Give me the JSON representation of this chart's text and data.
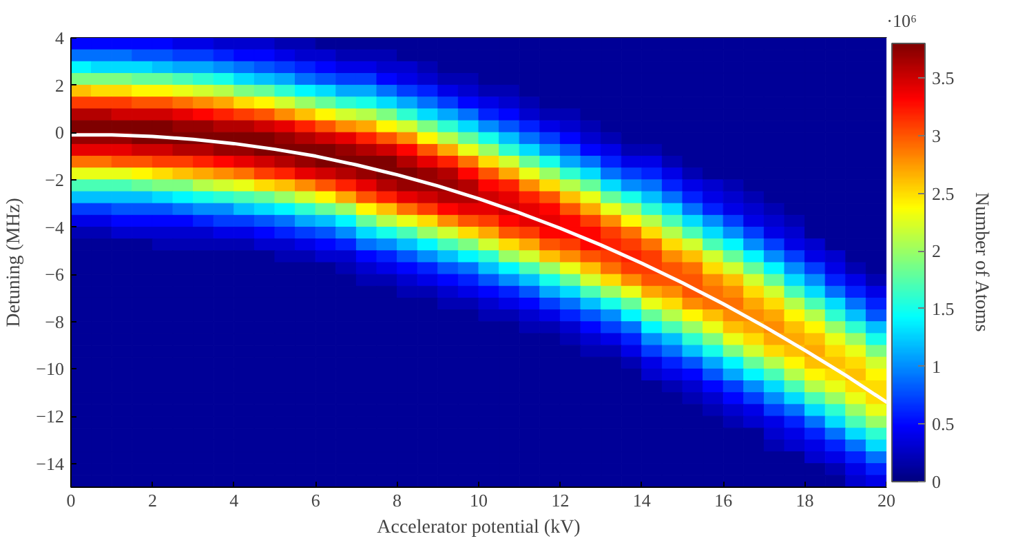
{
  "chart_data": {
    "type": "heatmap",
    "xlabel": "Accelerator potential (kV)",
    "ylabel": "Detuning (MHz)",
    "clabel": "Number of Atoms",
    "annotations": [
      "·10⁶"
    ],
    "xlim": [
      0,
      20
    ],
    "ylim": [
      -15,
      4
    ],
    "xticks": [
      0,
      2,
      4,
      6,
      8,
      10,
      12,
      14,
      16,
      18,
      20
    ],
    "yticks": [
      -14,
      -12,
      -10,
      -8,
      -6,
      -4,
      -2,
      0,
      2,
      4
    ],
    "clim": [
      0,
      3.8
    ],
    "cticks": [
      0,
      0.5,
      1,
      1.5,
      2,
      2.5,
      3,
      3.5
    ],
    "cells": [
      [
        0.5,
        0.5,
        0.5,
        0.5,
        0.5,
        0.4,
        0.4,
        0.3,
        0.3,
        0.3,
        0.2,
        0.2,
        0.1,
        0.1,
        0.1,
        0.1,
        0.1,
        0.1,
        0.1,
        0.1,
        0.1,
        0.1,
        0.1,
        0.1,
        0.1,
        0.1,
        0.1,
        0.1,
        0.1,
        0.1,
        0.1,
        0.1,
        0.1,
        0.1,
        0.1,
        0.1,
        0.1,
        0.1,
        0.1,
        0.1
      ],
      [
        0.9,
        0.9,
        0.9,
        0.8,
        0.8,
        0.7,
        0.7,
        0.6,
        0.5,
        0.5,
        0.4,
        0.3,
        0.3,
        0.2,
        0.2,
        0.2,
        0.1,
        0.1,
        0.1,
        0.1,
        0.1,
        0.1,
        0.1,
        0.1,
        0.1,
        0.1,
        0.1,
        0.1,
        0.1,
        0.1,
        0.1,
        0.1,
        0.1,
        0.1,
        0.1,
        0.1,
        0.1,
        0.1,
        0.1,
        0.1
      ],
      [
        1.4,
        1.3,
        1.3,
        1.3,
        1.2,
        1.1,
        1.1,
        1.0,
        0.9,
        0.8,
        0.7,
        0.6,
        0.5,
        0.4,
        0.4,
        0.3,
        0.3,
        0.2,
        0.1,
        0.1,
        0.1,
        0.1,
        0.1,
        0.1,
        0.1,
        0.1,
        0.1,
        0.1,
        0.1,
        0.1,
        0.1,
        0.1,
        0.1,
        0.1,
        0.1,
        0.1,
        0.1,
        0.1,
        0.1,
        0.1
      ],
      [
        1.9,
        1.9,
        1.9,
        1.8,
        1.8,
        1.7,
        1.6,
        1.5,
        1.3,
        1.2,
        1.1,
        0.9,
        0.8,
        0.7,
        0.7,
        0.5,
        0.4,
        0.3,
        0.2,
        0.2,
        0.1,
        0.1,
        0.1,
        0.1,
        0.1,
        0.1,
        0.1,
        0.1,
        0.1,
        0.1,
        0.1,
        0.1,
        0.1,
        0.1,
        0.1,
        0.1,
        0.1,
        0.1,
        0.1,
        0.1
      ],
      [
        2.6,
        2.5,
        2.5,
        2.4,
        2.4,
        2.3,
        2.2,
        2.1,
        1.9,
        1.8,
        1.6,
        1.4,
        1.3,
        1.1,
        1.1,
        0.9,
        0.7,
        0.6,
        0.4,
        0.3,
        0.2,
        0.2,
        0.1,
        0.1,
        0.1,
        0.1,
        0.1,
        0.1,
        0.1,
        0.1,
        0.1,
        0.1,
        0.1,
        0.1,
        0.1,
        0.1,
        0.1,
        0.1,
        0.1,
        0.1
      ],
      [
        3.1,
        3.1,
        3.1,
        3.0,
        3.0,
        2.9,
        2.8,
        2.7,
        2.5,
        2.4,
        2.2,
        2.0,
        1.8,
        1.6,
        1.5,
        1.3,
        1.1,
        0.9,
        0.7,
        0.5,
        0.4,
        0.3,
        0.2,
        0.1,
        0.1,
        0.1,
        0.1,
        0.1,
        0.1,
        0.1,
        0.1,
        0.1,
        0.1,
        0.1,
        0.1,
        0.1,
        0.1,
        0.1,
        0.1,
        0.1
      ],
      [
        3.6,
        3.6,
        3.5,
        3.5,
        3.5,
        3.4,
        3.3,
        3.2,
        3.1,
        3.0,
        2.8,
        2.6,
        2.4,
        2.2,
        2.1,
        1.9,
        1.6,
        1.3,
        1.1,
        0.9,
        0.6,
        0.5,
        0.3,
        0.2,
        0.2,
        0.1,
        0.1,
        0.1,
        0.1,
        0.1,
        0.1,
        0.1,
        0.1,
        0.1,
        0.1,
        0.1,
        0.1,
        0.1,
        0.1,
        0.1
      ],
      [
        3.8,
        3.8,
        3.8,
        3.8,
        3.8,
        3.7,
        3.7,
        3.6,
        3.6,
        3.5,
        3.4,
        3.2,
        3.0,
        2.8,
        2.7,
        2.4,
        2.2,
        1.9,
        1.6,
        1.3,
        1.0,
        0.8,
        0.6,
        0.4,
        0.3,
        0.2,
        0.1,
        0.1,
        0.1,
        0.1,
        0.1,
        0.1,
        0.1,
        0.1,
        0.1,
        0.1,
        0.1,
        0.1,
        0.1,
        0.1
      ],
      [
        3.7,
        3.7,
        3.7,
        3.8,
        3.8,
        3.8,
        3.8,
        3.8,
        3.8,
        3.8,
        3.7,
        3.6,
        3.5,
        3.4,
        3.2,
        3.0,
        2.8,
        2.4,
        2.1,
        1.8,
        1.5,
        1.2,
        0.9,
        0.7,
        0.5,
        0.3,
        0.2,
        0.1,
        0.1,
        0.1,
        0.1,
        0.1,
        0.1,
        0.1,
        0.1,
        0.1,
        0.1,
        0.1,
        0.1,
        0.1
      ],
      [
        3.4,
        3.4,
        3.4,
        3.5,
        3.5,
        3.6,
        3.6,
        3.7,
        3.7,
        3.8,
        3.8,
        3.8,
        3.8,
        3.7,
        3.6,
        3.5,
        3.3,
        3.0,
        2.7,
        2.3,
        2.0,
        1.6,
        1.3,
        1.0,
        0.8,
        0.5,
        0.4,
        0.2,
        0.2,
        0.1,
        0.1,
        0.1,
        0.1,
        0.1,
        0.1,
        0.1,
        0.1,
        0.1,
        0.1,
        0.1
      ],
      [
        2.9,
        2.9,
        3.0,
        3.0,
        3.1,
        3.1,
        3.2,
        3.3,
        3.4,
        3.5,
        3.6,
        3.7,
        3.8,
        3.8,
        3.8,
        3.8,
        3.6,
        3.4,
        3.2,
        2.9,
        2.5,
        2.2,
        1.8,
        1.5,
        1.1,
        0.9,
        0.6,
        0.4,
        0.4,
        0.2,
        0.1,
        0.1,
        0.1,
        0.1,
        0.1,
        0.1,
        0.1,
        0.1,
        0.1,
        0.1
      ],
      [
        2.3,
        2.3,
        2.3,
        2.4,
        2.5,
        2.6,
        2.7,
        2.8,
        2.9,
        3.1,
        3.2,
        3.4,
        3.5,
        3.6,
        3.7,
        3.8,
        3.8,
        3.7,
        3.6,
        3.3,
        3.0,
        2.7,
        2.3,
        2.0,
        1.6,
        1.3,
        0.9,
        0.7,
        0.6,
        0.4,
        0.2,
        0.1,
        0.1,
        0.1,
        0.1,
        0.1,
        0.1,
        0.1,
        0.1,
        0.1
      ],
      [
        1.7,
        1.7,
        1.7,
        1.8,
        1.9,
        1.9,
        2.1,
        2.2,
        2.3,
        2.5,
        2.6,
        2.8,
        3.0,
        3.2,
        3.4,
        3.6,
        3.7,
        3.7,
        3.7,
        3.6,
        3.3,
        3.2,
        2.8,
        2.5,
        2.1,
        1.8,
        1.3,
        1.0,
        0.9,
        0.6,
        0.4,
        0.3,
        0.2,
        0.1,
        0.1,
        0.1,
        0.1,
        0.1,
        0.1,
        0.1
      ],
      [
        1.2,
        1.2,
        1.2,
        1.2,
        1.3,
        1.4,
        1.5,
        1.6,
        1.7,
        1.8,
        2.0,
        2.2,
        2.4,
        2.7,
        3.0,
        3.2,
        3.4,
        3.5,
        3.6,
        3.6,
        3.5,
        3.4,
        3.2,
        3.0,
        2.6,
        2.3,
        1.8,
        1.5,
        1.2,
        0.9,
        0.6,
        0.4,
        0.3,
        0.2,
        0.1,
        0.1,
        0.1,
        0.1,
        0.1,
        0.1
      ],
      [
        0.7,
        0.7,
        0.8,
        0.8,
        0.8,
        0.9,
        1.0,
        1.0,
        1.2,
        1.3,
        1.4,
        1.6,
        1.8,
        2.0,
        2.4,
        2.6,
        2.9,
        3.1,
        3.3,
        3.4,
        3.4,
        3.5,
        3.4,
        3.3,
        3.0,
        2.7,
        2.3,
        2.0,
        1.6,
        1.3,
        0.9,
        0.6,
        0.4,
        0.3,
        0.2,
        0.1,
        0.1,
        0.1,
        0.1,
        0.1
      ],
      [
        0.4,
        0.4,
        0.5,
        0.5,
        0.5,
        0.5,
        0.6,
        0.7,
        0.7,
        0.8,
        0.9,
        1.1,
        1.2,
        1.4,
        1.8,
        2.1,
        2.3,
        2.5,
        2.8,
        3.0,
        3.1,
        3.3,
        3.4,
        3.4,
        3.3,
        3.1,
        2.8,
        2.4,
        2.1,
        1.7,
        1.3,
        1.0,
        0.7,
        0.4,
        0.3,
        0.2,
        0.1,
        0.1,
        0.1,
        0.1
      ],
      [
        0.2,
        0.2,
        0.3,
        0.3,
        0.3,
        0.3,
        0.3,
        0.4,
        0.4,
        0.5,
        0.6,
        0.7,
        0.8,
        1.0,
        1.3,
        1.5,
        1.7,
        2.0,
        2.2,
        2.5,
        2.7,
        3.0,
        3.1,
        3.3,
        3.3,
        3.3,
        3.1,
        2.9,
        2.5,
        2.1,
        1.7,
        1.3,
        1.0,
        0.7,
        0.4,
        0.3,
        0.1,
        0.1,
        0.1,
        0.1
      ],
      [
        0.1,
        0.1,
        0.1,
        0.1,
        0.2,
        0.2,
        0.2,
        0.2,
        0.2,
        0.3,
        0.3,
        0.4,
        0.5,
        0.6,
        0.9,
        1.0,
        1.2,
        1.4,
        1.7,
        1.9,
        2.2,
        2.5,
        2.7,
        3.0,
        3.1,
        3.3,
        3.2,
        3.1,
        2.9,
        2.5,
        2.2,
        1.7,
        1.4,
        1.0,
        0.7,
        0.4,
        0.3,
        0.1,
        0.1,
        0.1
      ],
      [
        0.1,
        0.1,
        0.1,
        0.1,
        0.1,
        0.1,
        0.1,
        0.1,
        0.1,
        0.1,
        0.2,
        0.2,
        0.3,
        0.3,
        0.5,
        0.6,
        0.8,
        1.0,
        1.2,
        1.4,
        1.6,
        2.0,
        2.2,
        2.6,
        2.8,
        3.0,
        3.1,
        3.2,
        3.1,
        2.8,
        2.6,
        2.2,
        1.8,
        1.4,
        1.0,
        0.7,
        0.4,
        0.3,
        0.1,
        0.1
      ],
      [
        0.1,
        0.1,
        0.1,
        0.1,
        0.1,
        0.1,
        0.1,
        0.1,
        0.1,
        0.1,
        0.1,
        0.1,
        0.1,
        0.2,
        0.3,
        0.4,
        0.5,
        0.6,
        0.8,
        0.9,
        1.2,
        1.4,
        1.7,
        2.0,
        2.3,
        2.6,
        2.9,
        3.1,
        3.1,
        3.0,
        2.9,
        2.5,
        2.2,
        1.8,
        1.4,
        1.0,
        0.7,
        0.4,
        0.2,
        0.1
      ],
      [
        0.1,
        0.1,
        0.1,
        0.1,
        0.1,
        0.1,
        0.1,
        0.1,
        0.1,
        0.1,
        0.1,
        0.1,
        0.1,
        0.1,
        0.2,
        0.2,
        0.3,
        0.4,
        0.5,
        0.6,
        0.8,
        1.0,
        1.2,
        1.5,
        1.8,
        2.2,
        2.5,
        2.8,
        3.0,
        3.0,
        3.0,
        2.8,
        2.6,
        2.2,
        1.8,
        1.3,
        1.0,
        0.6,
        0.4,
        0.2
      ],
      [
        0.1,
        0.1,
        0.1,
        0.1,
        0.1,
        0.1,
        0.1,
        0.1,
        0.1,
        0.1,
        0.1,
        0.1,
        0.1,
        0.1,
        0.1,
        0.1,
        0.2,
        0.2,
        0.3,
        0.4,
        0.5,
        0.6,
        0.8,
        1.1,
        1.3,
        1.7,
        2.0,
        2.3,
        2.7,
        2.8,
        3.0,
        2.9,
        2.8,
        2.5,
        2.2,
        1.7,
        1.3,
        0.9,
        0.6,
        0.4
      ],
      [
        0.1,
        0.1,
        0.1,
        0.1,
        0.1,
        0.1,
        0.1,
        0.1,
        0.1,
        0.1,
        0.1,
        0.1,
        0.1,
        0.1,
        0.1,
        0.1,
        0.1,
        0.1,
        0.2,
        0.2,
        0.3,
        0.4,
        0.5,
        0.7,
        0.9,
        1.2,
        1.5,
        1.8,
        2.3,
        2.5,
        2.8,
        2.9,
        2.9,
        2.7,
        2.5,
        2.1,
        1.7,
        1.3,
        0.9,
        0.6
      ],
      [
        0.1,
        0.1,
        0.1,
        0.1,
        0.1,
        0.1,
        0.1,
        0.1,
        0.1,
        0.1,
        0.1,
        0.1,
        0.1,
        0.1,
        0.1,
        0.1,
        0.1,
        0.1,
        0.1,
        0.1,
        0.2,
        0.2,
        0.3,
        0.4,
        0.6,
        0.8,
        1.0,
        1.4,
        1.8,
        2.1,
        2.4,
        2.6,
        2.8,
        2.8,
        2.7,
        2.4,
        2.1,
        1.6,
        1.2,
        0.8
      ],
      [
        0.1,
        0.1,
        0.1,
        0.1,
        0.1,
        0.1,
        0.1,
        0.1,
        0.1,
        0.1,
        0.1,
        0.1,
        0.1,
        0.1,
        0.1,
        0.1,
        0.1,
        0.1,
        0.1,
        0.1,
        0.1,
        0.1,
        0.2,
        0.2,
        0.3,
        0.5,
        0.7,
        0.9,
        1.4,
        1.7,
        2.0,
        2.3,
        2.6,
        2.7,
        2.8,
        2.6,
        2.4,
        2.0,
        1.6,
        1.2
      ],
      [
        0.1,
        0.1,
        0.1,
        0.1,
        0.1,
        0.1,
        0.1,
        0.1,
        0.1,
        0.1,
        0.1,
        0.1,
        0.1,
        0.1,
        0.1,
        0.1,
        0.1,
        0.1,
        0.1,
        0.1,
        0.1,
        0.1,
        0.1,
        0.1,
        0.2,
        0.3,
        0.4,
        0.6,
        1.0,
        1.2,
        1.6,
        1.9,
        2.3,
        2.5,
        2.7,
        2.7,
        2.6,
        2.3,
        2.0,
        1.5
      ],
      [
        0.1,
        0.1,
        0.1,
        0.1,
        0.1,
        0.1,
        0.1,
        0.1,
        0.1,
        0.1,
        0.1,
        0.1,
        0.1,
        0.1,
        0.1,
        0.1,
        0.1,
        0.1,
        0.1,
        0.1,
        0.1,
        0.1,
        0.1,
        0.1,
        0.1,
        0.2,
        0.2,
        0.4,
        0.7,
        0.9,
        1.2,
        1.5,
        1.9,
        2.2,
        2.5,
        2.6,
        2.7,
        2.5,
        2.3,
        1.9
      ],
      [
        0.1,
        0.1,
        0.1,
        0.1,
        0.1,
        0.1,
        0.1,
        0.1,
        0.1,
        0.1,
        0.1,
        0.1,
        0.1,
        0.1,
        0.1,
        0.1,
        0.1,
        0.1,
        0.1,
        0.1,
        0.1,
        0.1,
        0.1,
        0.1,
        0.1,
        0.1,
        0.1,
        0.2,
        0.4,
        0.6,
        0.8,
        1.1,
        1.4,
        1.8,
        2.1,
        2.4,
        2.6,
        2.6,
        2.5,
        2.2
      ],
      [
        0.1,
        0.1,
        0.1,
        0.1,
        0.1,
        0.1,
        0.1,
        0.1,
        0.1,
        0.1,
        0.1,
        0.1,
        0.1,
        0.1,
        0.1,
        0.1,
        0.1,
        0.1,
        0.1,
        0.1,
        0.1,
        0.1,
        0.1,
        0.1,
        0.1,
        0.1,
        0.1,
        0.1,
        0.3,
        0.4,
        0.5,
        0.8,
        1.1,
        1.4,
        1.7,
        2.1,
        2.4,
        2.5,
        2.6,
        2.4
      ],
      [
        0.1,
        0.1,
        0.1,
        0.1,
        0.1,
        0.1,
        0.1,
        0.1,
        0.1,
        0.1,
        0.1,
        0.1,
        0.1,
        0.1,
        0.1,
        0.1,
        0.1,
        0.1,
        0.1,
        0.1,
        0.1,
        0.1,
        0.1,
        0.1,
        0.1,
        0.1,
        0.1,
        0.1,
        0.1,
        0.2,
        0.3,
        0.5,
        0.7,
        1.0,
        1.3,
        1.7,
        2.1,
        2.3,
        2.5,
        2.5
      ],
      [
        0.1,
        0.1,
        0.1,
        0.1,
        0.1,
        0.1,
        0.1,
        0.1,
        0.1,
        0.1,
        0.1,
        0.1,
        0.1,
        0.1,
        0.1,
        0.1,
        0.1,
        0.1,
        0.1,
        0.1,
        0.1,
        0.1,
        0.1,
        0.1,
        0.1,
        0.1,
        0.1,
        0.1,
        0.1,
        0.1,
        0.2,
        0.3,
        0.5,
        0.7,
        1.0,
        1.3,
        1.7,
        2.0,
        2.3,
        2.5
      ],
      [
        0.1,
        0.1,
        0.1,
        0.1,
        0.1,
        0.1,
        0.1,
        0.1,
        0.1,
        0.1,
        0.1,
        0.1,
        0.1,
        0.1,
        0.1,
        0.1,
        0.1,
        0.1,
        0.1,
        0.1,
        0.1,
        0.1,
        0.1,
        0.1,
        0.1,
        0.1,
        0.1,
        0.1,
        0.1,
        0.1,
        0.1,
        0.2,
        0.3,
        0.4,
        0.7,
        0.9,
        1.3,
        1.6,
        2.0,
        2.3
      ],
      [
        0.1,
        0.1,
        0.1,
        0.1,
        0.1,
        0.1,
        0.1,
        0.1,
        0.1,
        0.1,
        0.1,
        0.1,
        0.1,
        0.1,
        0.1,
        0.1,
        0.1,
        0.1,
        0.1,
        0.1,
        0.1,
        0.1,
        0.1,
        0.1,
        0.1,
        0.1,
        0.1,
        0.1,
        0.1,
        0.1,
        0.1,
        0.1,
        0.2,
        0.3,
        0.4,
        0.6,
        0.9,
        1.3,
        1.7,
        2.0
      ],
      [
        0.1,
        0.1,
        0.1,
        0.1,
        0.1,
        0.1,
        0.1,
        0.1,
        0.1,
        0.1,
        0.1,
        0.1,
        0.1,
        0.1,
        0.1,
        0.1,
        0.1,
        0.1,
        0.1,
        0.1,
        0.1,
        0.1,
        0.1,
        0.1,
        0.1,
        0.1,
        0.1,
        0.1,
        0.1,
        0.1,
        0.1,
        0.1,
        0.1,
        0.1,
        0.3,
        0.4,
        0.6,
        0.9,
        1.3,
        1.6
      ],
      [
        0.1,
        0.1,
        0.1,
        0.1,
        0.1,
        0.1,
        0.1,
        0.1,
        0.1,
        0.1,
        0.1,
        0.1,
        0.1,
        0.1,
        0.1,
        0.1,
        0.1,
        0.1,
        0.1,
        0.1,
        0.1,
        0.1,
        0.1,
        0.1,
        0.1,
        0.1,
        0.1,
        0.1,
        0.1,
        0.1,
        0.1,
        0.1,
        0.1,
        0.1,
        0.2,
        0.3,
        0.4,
        0.6,
        0.9,
        1.3
      ],
      [
        0.1,
        0.1,
        0.1,
        0.1,
        0.1,
        0.1,
        0.1,
        0.1,
        0.1,
        0.1,
        0.1,
        0.1,
        0.1,
        0.1,
        0.1,
        0.1,
        0.1,
        0.1,
        0.1,
        0.1,
        0.1,
        0.1,
        0.1,
        0.1,
        0.1,
        0.1,
        0.1,
        0.1,
        0.1,
        0.1,
        0.1,
        0.1,
        0.1,
        0.1,
        0.1,
        0.1,
        0.3,
        0.4,
        0.6,
        0.9
      ],
      [
        0.1,
        0.1,
        0.1,
        0.1,
        0.1,
        0.1,
        0.1,
        0.1,
        0.1,
        0.1,
        0.1,
        0.1,
        0.1,
        0.1,
        0.1,
        0.1,
        0.1,
        0.1,
        0.1,
        0.1,
        0.1,
        0.1,
        0.1,
        0.1,
        0.1,
        0.1,
        0.1,
        0.1,
        0.1,
        0.1,
        0.1,
        0.1,
        0.1,
        0.1,
        0.1,
        0.1,
        0.1,
        0.2,
        0.4,
        0.6
      ],
      [
        0.1,
        0.1,
        0.1,
        0.1,
        0.1,
        0.1,
        0.1,
        0.1,
        0.1,
        0.1,
        0.1,
        0.1,
        0.1,
        0.1,
        0.1,
        0.1,
        0.1,
        0.1,
        0.1,
        0.1,
        0.1,
        0.1,
        0.1,
        0.1,
        0.1,
        0.1,
        0.1,
        0.1,
        0.1,
        0.1,
        0.1,
        0.1,
        0.1,
        0.1,
        0.1,
        0.1,
        0.1,
        0.1,
        0.3,
        0.4
      ]
    ],
    "series": [
      {
        "type": "line",
        "color": "#ffffff",
        "x": [
          0,
          1,
          2,
          3,
          4,
          5,
          6,
          7,
          8,
          9,
          10,
          11,
          12,
          13,
          14,
          15,
          16,
          17,
          18,
          19,
          20
        ],
        "values": [
          -0.1,
          -0.1,
          -0.17,
          -0.29,
          -0.47,
          -0.71,
          -1.0,
          -1.37,
          -1.79,
          -2.26,
          -2.8,
          -3.4,
          -4.05,
          -4.76,
          -5.53,
          -6.36,
          -7.25,
          -8.2,
          -9.21,
          -10.27,
          -11.4
        ]
      }
    ]
  }
}
